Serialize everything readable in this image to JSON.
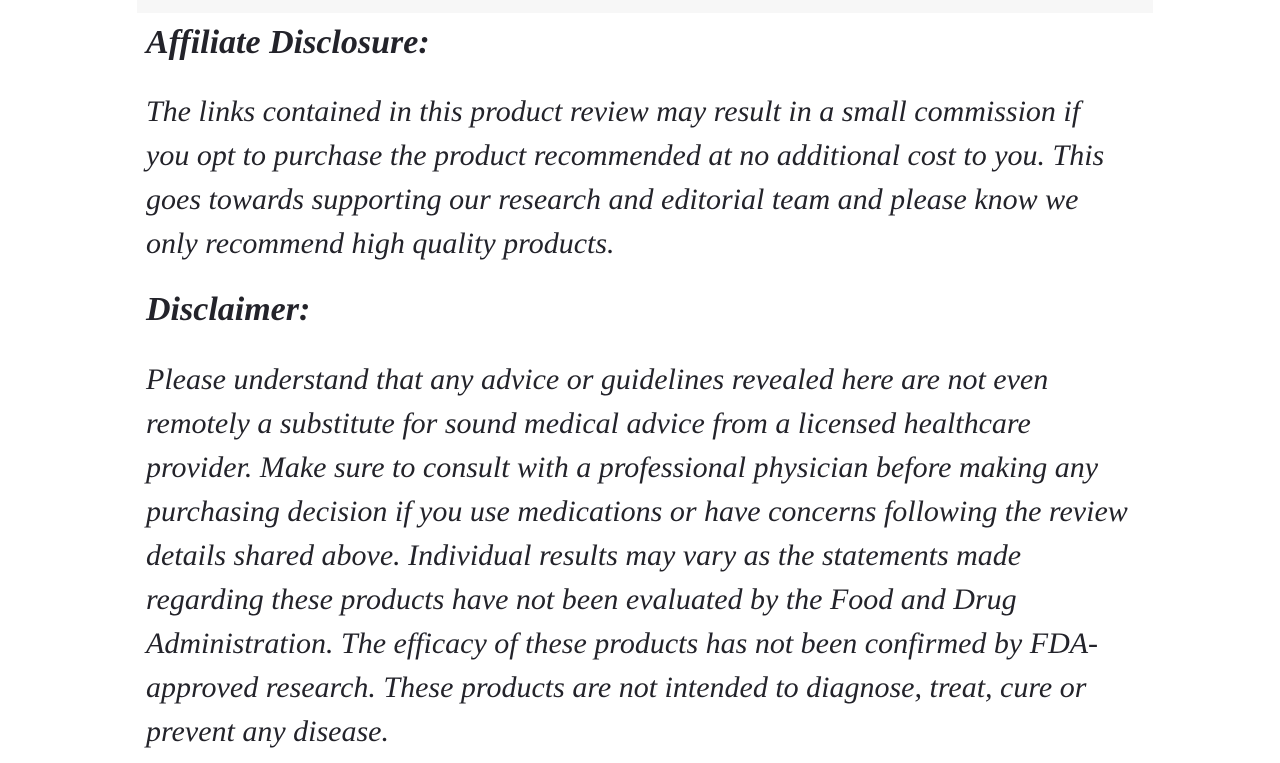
{
  "page": {
    "background_color": "#ffffff",
    "text_color": "#23232a",
    "top_strip_color": "#f7f7f7"
  },
  "content": {
    "sections": [
      {
        "heading": "Affiliate Disclosure:",
        "lines": [
          "The links contained in this product review may result in a small commission if",
          "you opt to purchase the product recommended at no additional cost to you. This",
          "goes towards supporting our research and editorial team and please know we",
          "only recommend high quality products."
        ]
      },
      {
        "heading": "Disclaimer:",
        "lines": [
          "Please understand that any advice or guidelines revealed here are not even",
          "remotely a substitute for sound medical advice from a licensed healthcare",
          "provider. Make sure to consult with a professional physician before making any",
          "purchasing decision if you use medications or have concerns following the review",
          "details shared above. Individual results may vary as the statements made",
          "regarding these products have not been evaluated by the Food and Drug",
          "Administration. The efficacy of these products has not been confirmed by FDA-",
          "approved research. These products are not intended to diagnose, treat, cure or",
          "prevent any disease."
        ]
      }
    ]
  }
}
